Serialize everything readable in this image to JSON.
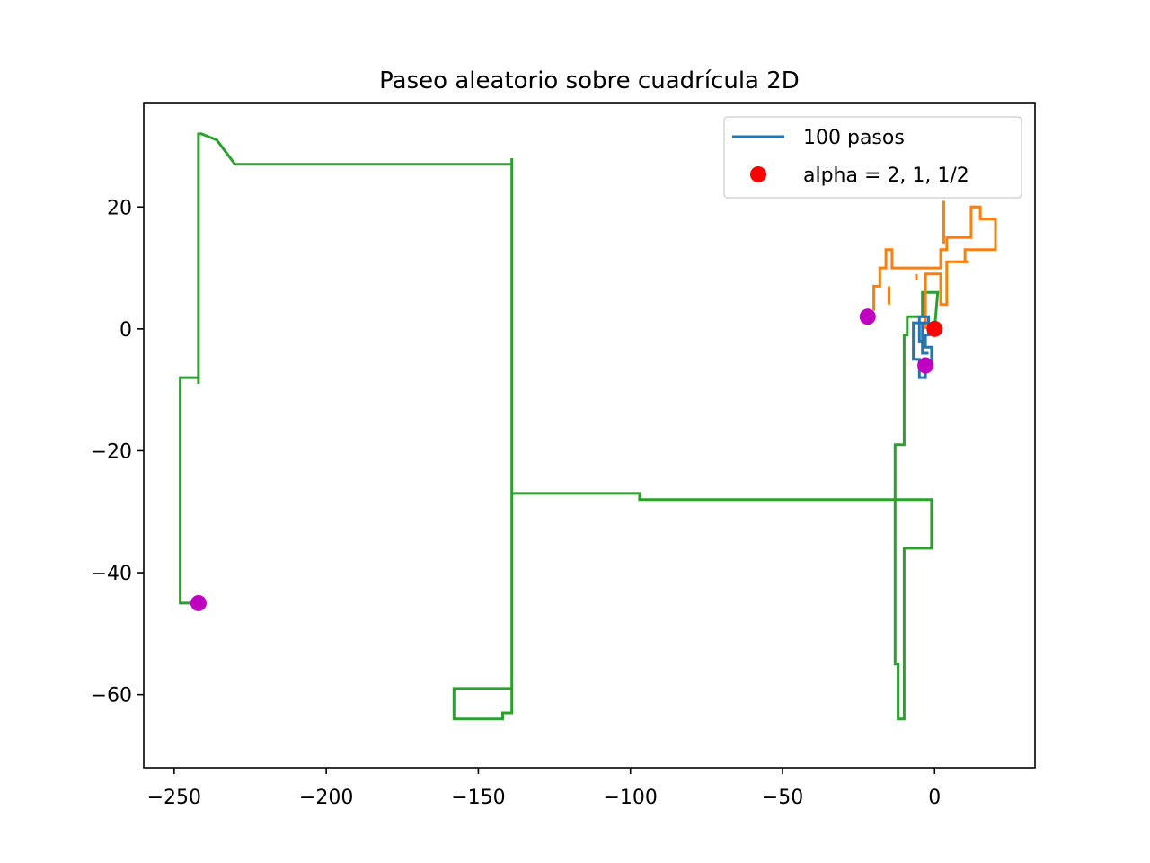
{
  "chart_data": {
    "type": "line",
    "title": "Paseo aleatorio sobre cuadrícula 2D",
    "xlabel": "",
    "ylabel": "",
    "xlim": [
      -260,
      33
    ],
    "ylim": [
      -72,
      37
    ],
    "xticks": [
      -250,
      -200,
      -150,
      -100,
      -50,
      0
    ],
    "xtick_labels": [
      "−250",
      "−200",
      "−150",
      "−100",
      "−50",
      "0"
    ],
    "yticks": [
      -60,
      -40,
      -20,
      0,
      20
    ],
    "ytick_labels": [
      "−60",
      "−40",
      "−20",
      "0",
      "20"
    ],
    "grid": false,
    "legend": {
      "placement": "top-right",
      "entries": [
        {
          "label": "100 pasos",
          "marker": "line",
          "color": "#1f77b4"
        },
        {
          "label": "alpha = 2, 1, 1/2",
          "marker": "dot",
          "color": "#ff0000"
        }
      ]
    },
    "series": [
      {
        "color": "#2ca02c",
        "x": [
          0,
          1,
          1,
          -4,
          -4,
          -9,
          -9,
          -10,
          -10,
          -13,
          -13,
          -13,
          -12,
          -12,
          -10,
          -10,
          -10,
          -10,
          -1,
          -1,
          -1,
          -12,
          -12,
          -12,
          -42,
          -68,
          -97,
          -97,
          -97,
          -139,
          -139,
          -142,
          -142,
          -158,
          -158,
          -139,
          -139,
          -139,
          -139,
          -230,
          -236,
          -236,
          -241,
          -242,
          -242,
          -242,
          -242,
          -248,
          -248,
          -242
        ],
        "y": [
          0,
          6,
          6,
          6,
          2,
          2,
          -1,
          -1,
          -19,
          -19,
          -45,
          -55,
          -55,
          -64,
          -64,
          -36,
          -36,
          -36,
          -36,
          -28,
          -28,
          -28,
          -28,
          -28,
          -28,
          -28,
          -28,
          -27,
          -27,
          -27,
          -63,
          -63,
          -64,
          -64,
          -59,
          -59,
          28,
          28,
          27,
          27,
          31,
          31,
          32,
          32,
          -9,
          -8,
          -8,
          -8,
          -45,
          -45
        ]
      },
      {
        "color": "#ff7f0e",
        "x": [
          -20,
          -20,
          -18,
          -18,
          -16,
          -16,
          -14,
          -14,
          2,
          2,
          4,
          4,
          12,
          12,
          15,
          15,
          20,
          20,
          10,
          10,
          4,
          4,
          2,
          2,
          -3,
          -3
        ],
        "y": [
          3,
          7,
          7,
          10,
          10,
          13,
          13,
          10,
          10,
          13,
          13,
          15,
          15,
          20,
          20,
          18,
          18,
          13,
          13,
          11,
          11,
          4,
          4,
          9,
          9,
          0
        ],
        "extra_segments": [
          [
            [
              3,
              21
            ],
            [
              3,
              14
            ]
          ],
          [
            [
              -6,
              9
            ],
            [
              -6,
              8
            ]
          ],
          [
            [
              7,
              11
            ],
            [
              11,
              11
            ]
          ],
          [
            [
              12,
              20
            ],
            [
              14,
              20
            ]
          ],
          [
            [
              -15,
              4
            ],
            [
              -15,
              7
            ]
          ]
        ]
      },
      {
        "name": "100 pasos",
        "color": "#1f77b4",
        "x": [
          0,
          -2,
          -2,
          -4,
          -4,
          -5,
          -5,
          -2,
          -2,
          -3,
          -3,
          -1,
          -1,
          -3,
          -3,
          -5,
          -5,
          -7,
          -7,
          -4,
          -4,
          -2
        ],
        "y": [
          0,
          0,
          1,
          1,
          -2,
          -2,
          2,
          2,
          -1,
          -1,
          -3,
          -3,
          -6,
          -6,
          -8,
          -8,
          -5,
          -5,
          1,
          1,
          -4,
          -4
        ]
      }
    ],
    "markers": [
      {
        "color": "#ff0000",
        "x": 0,
        "y": 0
      },
      {
        "color": "#c000c0",
        "x": -22,
        "y": 2
      },
      {
        "color": "#c000c0",
        "x": -3,
        "y": -6
      },
      {
        "color": "#c000c0",
        "x": -242,
        "y": -45
      }
    ]
  }
}
